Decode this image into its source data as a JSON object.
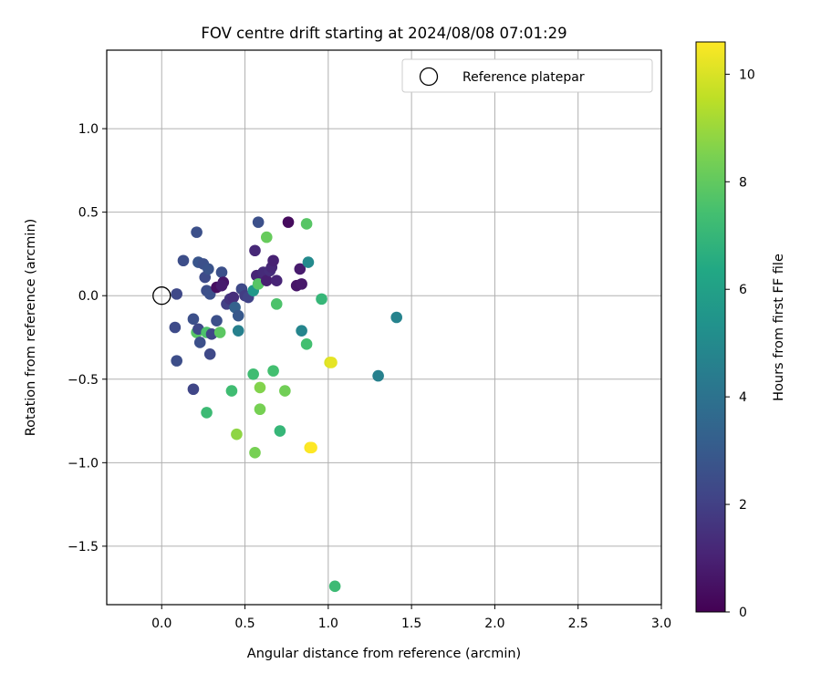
{
  "chart_data": {
    "type": "scatter",
    "title": "FOV centre drift starting at 2024/08/08 07:01:29",
    "xlabel": "Angular distance from reference (arcmin)",
    "ylabel": "Rotation from reference (arcmin)",
    "xlim": [
      -0.33,
      3.0
    ],
    "ylim": [
      -1.85,
      1.47
    ],
    "xticks": [
      "0.0",
      "0.5",
      "1.0",
      "1.5",
      "2.0",
      "2.5",
      "3.0"
    ],
    "xtick_values": [
      0.0,
      0.5,
      1.0,
      1.5,
      2.0,
      2.5,
      3.0
    ],
    "yticks": [
      "−1.5",
      "−1.0",
      "−0.5",
      "0.0",
      "0.5",
      "1.0"
    ],
    "ytick_values": [
      -1.5,
      -1.0,
      -0.5,
      0.0,
      0.5,
      1.0
    ],
    "grid": true,
    "legend": {
      "position": "top-right",
      "label": "Reference platepar"
    },
    "reference_point": [
      0.0,
      0.0
    ],
    "colorbar": {
      "label": "Hours from first FF file",
      "range": [
        0,
        10.6
      ],
      "ticks": [
        "0",
        "2",
        "4",
        "6",
        "8",
        "10"
      ],
      "tick_values": [
        0,
        2,
        4,
        6,
        8,
        10
      ],
      "colormap": "viridis"
    },
    "points": [
      {
        "x": 0.09,
        "y": 0.01,
        "h": 2.3
      },
      {
        "x": 0.13,
        "y": 0.21,
        "h": 2.5
      },
      {
        "x": 0.21,
        "y": 0.38,
        "h": 2.6
      },
      {
        "x": 0.22,
        "y": 0.2,
        "h": 2.8
      },
      {
        "x": 0.25,
        "y": 0.19,
        "h": 2.6
      },
      {
        "x": 0.26,
        "y": 0.11,
        "h": 2.4
      },
      {
        "x": 0.27,
        "y": 0.03,
        "h": 2.5
      },
      {
        "x": 0.28,
        "y": 0.16,
        "h": 2.7
      },
      {
        "x": 0.29,
        "y": 0.01,
        "h": 2.6
      },
      {
        "x": 0.33,
        "y": 0.05,
        "h": 0.4
      },
      {
        "x": 0.36,
        "y": 0.14,
        "h": 2.6
      },
      {
        "x": 0.37,
        "y": 0.08,
        "h": 0.6
      },
      {
        "x": 0.36,
        "y": 0.06,
        "h": 0.8
      },
      {
        "x": 0.39,
        "y": -0.05,
        "h": 2.0
      },
      {
        "x": 0.41,
        "y": -0.02,
        "h": 1.6
      },
      {
        "x": 0.43,
        "y": -0.01,
        "h": 1.4
      },
      {
        "x": 0.44,
        "y": -0.07,
        "h": 3.3
      },
      {
        "x": 0.46,
        "y": -0.12,
        "h": 2.9
      },
      {
        "x": 0.48,
        "y": 0.04,
        "h": 2.3
      },
      {
        "x": 0.5,
        "y": 0.0,
        "h": 1.9
      },
      {
        "x": 0.52,
        "y": -0.01,
        "h": 2.1
      },
      {
        "x": 0.55,
        "y": 0.03,
        "h": 5.6
      },
      {
        "x": 0.56,
        "y": 0.27,
        "h": 1.2
      },
      {
        "x": 0.57,
        "y": 0.12,
        "h": 1.1
      },
      {
        "x": 0.58,
        "y": 0.44,
        "h": 2.6
      },
      {
        "x": 0.58,
        "y": 0.07,
        "h": 7.8
      },
      {
        "x": 0.61,
        "y": 0.14,
        "h": 1.3
      },
      {
        "x": 0.63,
        "y": 0.09,
        "h": 0.9
      },
      {
        "x": 0.63,
        "y": 0.35,
        "h": 8.1
      },
      {
        "x": 0.65,
        "y": 0.15,
        "h": 1.4
      },
      {
        "x": 0.66,
        "y": 0.17,
        "h": 1.2
      },
      {
        "x": 0.67,
        "y": 0.21,
        "h": 1.0
      },
      {
        "x": 0.69,
        "y": 0.09,
        "h": 1.1
      },
      {
        "x": 0.69,
        "y": -0.05,
        "h": 7.6
      },
      {
        "x": 0.76,
        "y": 0.44,
        "h": 0.3
      },
      {
        "x": 0.81,
        "y": 0.06,
        "h": 0.6
      },
      {
        "x": 0.83,
        "y": 0.16,
        "h": 0.8
      },
      {
        "x": 0.84,
        "y": 0.07,
        "h": 0.7
      },
      {
        "x": 0.84,
        "y": -0.21,
        "h": 4.8
      },
      {
        "x": 0.87,
        "y": 0.43,
        "h": 7.8
      },
      {
        "x": 0.88,
        "y": 0.2,
        "h": 5.0
      },
      {
        "x": 0.87,
        "y": -0.29,
        "h": 7.4
      },
      {
        "x": 0.96,
        "y": -0.02,
        "h": 7.0
      },
      {
        "x": 0.08,
        "y": -0.19,
        "h": 2.4
      },
      {
        "x": 0.09,
        "y": -0.39,
        "h": 2.5
      },
      {
        "x": 0.19,
        "y": -0.14,
        "h": 2.6
      },
      {
        "x": 0.21,
        "y": -0.22,
        "h": 7.8
      },
      {
        "x": 0.22,
        "y": -0.2,
        "h": 2.3
      },
      {
        "x": 0.23,
        "y": -0.28,
        "h": 2.6
      },
      {
        "x": 0.27,
        "y": -0.22,
        "h": 7.6
      },
      {
        "x": 0.29,
        "y": -0.35,
        "h": 2.3
      },
      {
        "x": 0.3,
        "y": -0.23,
        "h": 2.2
      },
      {
        "x": 0.33,
        "y": -0.15,
        "h": 2.6
      },
      {
        "x": 0.35,
        "y": -0.22,
        "h": 7.9
      },
      {
        "x": 0.46,
        "y": -0.21,
        "h": 4.6
      },
      {
        "x": 0.19,
        "y": -0.56,
        "h": 2.2
      },
      {
        "x": 0.27,
        "y": -0.7,
        "h": 7.2
      },
      {
        "x": 0.42,
        "y": -0.57,
        "h": 7.3
      },
      {
        "x": 0.45,
        "y": -0.83,
        "h": 8.8
      },
      {
        "x": 0.55,
        "y": -0.47,
        "h": 7.3
      },
      {
        "x": 0.56,
        "y": -0.94,
        "h": 8.4
      },
      {
        "x": 0.59,
        "y": -0.55,
        "h": 8.6
      },
      {
        "x": 0.59,
        "y": -0.68,
        "h": 8.4
      },
      {
        "x": 0.67,
        "y": -0.45,
        "h": 7.4
      },
      {
        "x": 0.71,
        "y": -0.81,
        "h": 7.0
      },
      {
        "x": 0.74,
        "y": -0.57,
        "h": 8.3
      },
      {
        "x": 0.89,
        "y": -0.91,
        "h": 10.5
      },
      {
        "x": 0.9,
        "y": -0.91,
        "h": 10.6
      },
      {
        "x": 1.01,
        "y": -0.4,
        "h": 10.0
      },
      {
        "x": 1.02,
        "y": -0.4,
        "h": 10.2
      },
      {
        "x": 1.04,
        "y": -1.74,
        "h": 7.2
      },
      {
        "x": 1.3,
        "y": -0.48,
        "h": 4.6
      },
      {
        "x": 1.41,
        "y": -0.13,
        "h": 4.7
      }
    ]
  }
}
